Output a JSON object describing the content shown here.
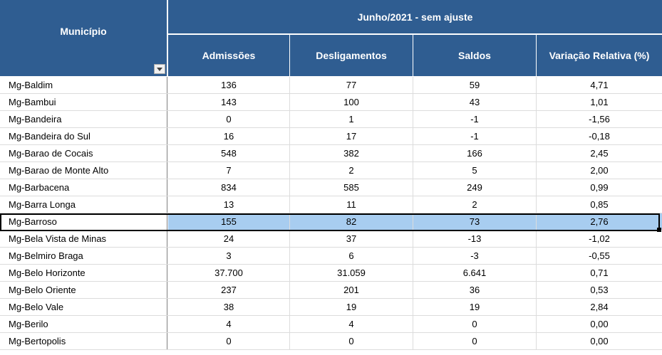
{
  "header": {
    "municipio": "Município",
    "group": "Junho/2021 - sem ajuste",
    "columns": [
      "Admissões",
      "Desligamentos",
      "Saldos",
      "Variação Relativa (%)"
    ]
  },
  "selected_row": 8,
  "rows": [
    {
      "municipio": "Mg-Baldim",
      "admissoes": "136",
      "desligamentos": "77",
      "saldos": "59",
      "variacao": "4,71"
    },
    {
      "municipio": "Mg-Bambui",
      "admissoes": "143",
      "desligamentos": "100",
      "saldos": "43",
      "variacao": "1,01"
    },
    {
      "municipio": "Mg-Bandeira",
      "admissoes": "0",
      "desligamentos": "1",
      "saldos": "-1",
      "variacao": "-1,56"
    },
    {
      "municipio": "Mg-Bandeira do Sul",
      "admissoes": "16",
      "desligamentos": "17",
      "saldos": "-1",
      "variacao": "-0,18"
    },
    {
      "municipio": "Mg-Barao de Cocais",
      "admissoes": "548",
      "desligamentos": "382",
      "saldos": "166",
      "variacao": "2,45"
    },
    {
      "municipio": "Mg-Barao de Monte Alto",
      "admissoes": "7",
      "desligamentos": "2",
      "saldos": "5",
      "variacao": "2,00"
    },
    {
      "municipio": "Mg-Barbacena",
      "admissoes": "834",
      "desligamentos": "585",
      "saldos": "249",
      "variacao": "0,99"
    },
    {
      "municipio": "Mg-Barra Longa",
      "admissoes": "13",
      "desligamentos": "11",
      "saldos": "2",
      "variacao": "0,85"
    },
    {
      "municipio": "Mg-Barroso",
      "admissoes": "155",
      "desligamentos": "82",
      "saldos": "73",
      "variacao": "2,76"
    },
    {
      "municipio": "Mg-Bela Vista de Minas",
      "admissoes": "24",
      "desligamentos": "37",
      "saldos": "-13",
      "variacao": "-1,02"
    },
    {
      "municipio": "Mg-Belmiro Braga",
      "admissoes": "3",
      "desligamentos": "6",
      "saldos": "-3",
      "variacao": "-0,55"
    },
    {
      "municipio": "Mg-Belo Horizonte",
      "admissoes": "37.700",
      "desligamentos": "31.059",
      "saldos": "6.641",
      "variacao": "0,71"
    },
    {
      "municipio": "Mg-Belo Oriente",
      "admissoes": "237",
      "desligamentos": "201",
      "saldos": "36",
      "variacao": "0,53"
    },
    {
      "municipio": "Mg-Belo Vale",
      "admissoes": "38",
      "desligamentos": "19",
      "saldos": "19",
      "variacao": "2,84"
    },
    {
      "municipio": "Mg-Berilo",
      "admissoes": "4",
      "desligamentos": "4",
      "saldos": "0",
      "variacao": "0,00"
    },
    {
      "municipio": "Mg-Bertopolis",
      "admissoes": "0",
      "desligamentos": "0",
      "saldos": "0",
      "variacao": "0,00"
    }
  ],
  "colors": {
    "header": "#2f5d91",
    "selection": "#a8cdf0"
  }
}
